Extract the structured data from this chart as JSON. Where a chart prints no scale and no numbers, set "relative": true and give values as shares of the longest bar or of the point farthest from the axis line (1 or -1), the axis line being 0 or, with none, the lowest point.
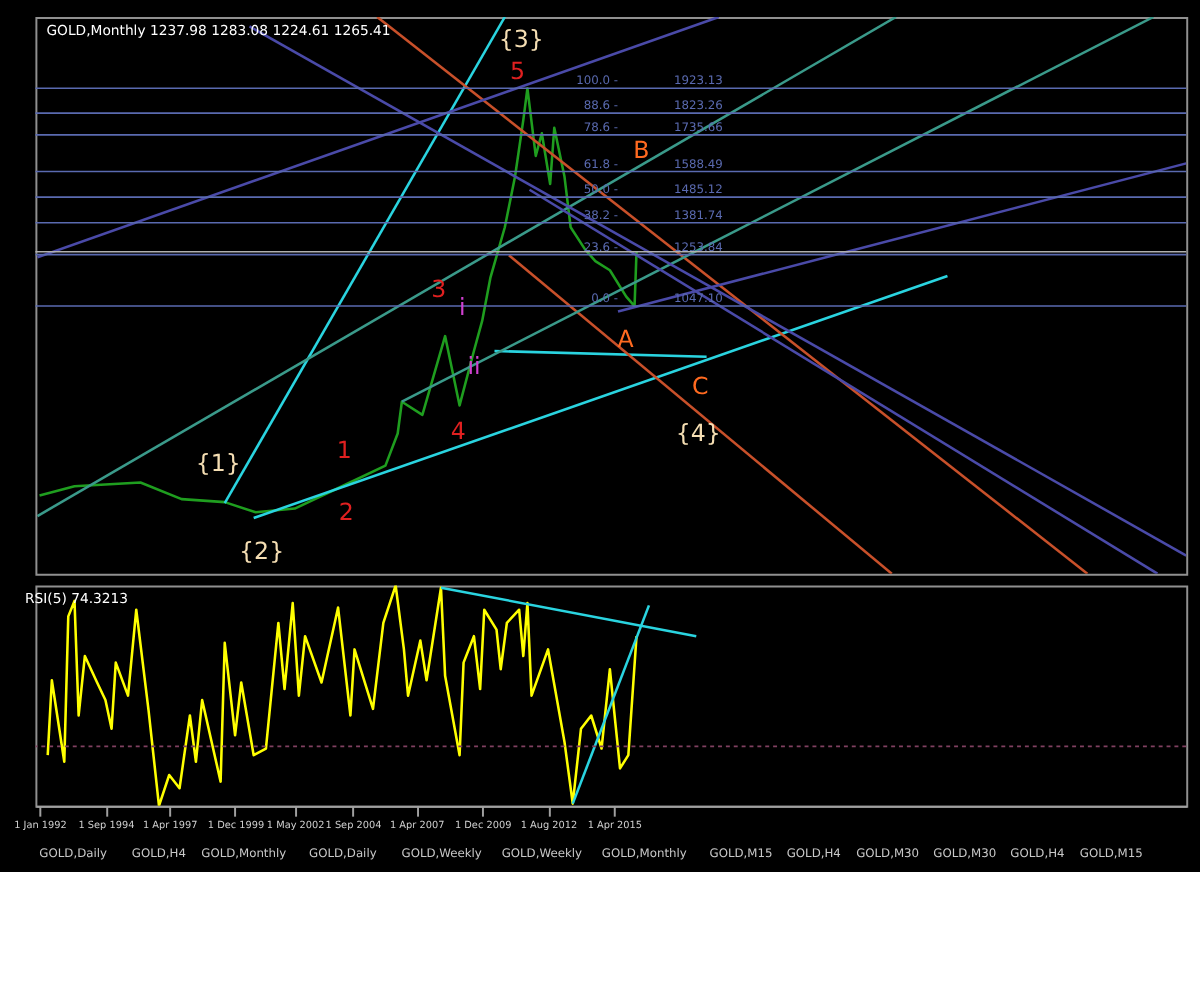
{
  "chart_data": [
    {
      "type": "line",
      "title": "GOLD,Monthly  1237.98 1283.08 1224.61 1265.41",
      "xlim": [
        "1991-11",
        "2038-06"
      ],
      "ylim": [
        -30,
        2210
      ],
      "tick_labels": false,
      "series": [
        {
          "color": "#1f9e1f",
          "x": [
            "1992-01",
            "1993-06",
            "1996-02",
            "1997-10",
            "1999-07",
            "2000-10",
            "2002-05",
            "2004-06",
            "2006-01",
            "2006-07",
            "2006-09",
            "2007-07",
            "2008-06",
            "2009-01",
            "2009-08",
            "2009-12",
            "2010-04",
            "2010-11",
            "2011-04",
            "2011-08",
            "2011-10",
            "2012-02",
            "2012-05",
            "2012-09",
            "2012-11",
            "2013-04",
            "2013-07",
            "2014-02",
            "2014-07",
            "2015-02",
            "2015-10",
            "2016-02",
            "2016-03"
          ],
          "values": [
            285,
            322,
            337,
            270,
            258,
            217,
            232,
            330,
            405,
            534,
            662,
            609,
            926,
            647,
            866,
            987,
            1160,
            1364,
            1568,
            1795,
            1923,
            1651,
            1742,
            1538,
            1764,
            1568,
            1364,
            1274,
            1228,
            1191,
            1085,
            1047,
            1265
          ]
        },
        {
          "type": "line",
          "color": "#2ad4e0",
          "x": [
            "1999-07",
            "2010-11"
          ],
          "values": [
            254,
            2210
          ]
        },
        {
          "type": "line",
          "color": "#2ad4e0",
          "x": [
            "2000-09",
            "2028-10"
          ],
          "values": [
            194,
            1168
          ]
        },
        {
          "type": "line",
          "color": "#2ad4e0",
          "x": [
            "2019-01",
            "2010-06"
          ],
          "values": [
            843,
            866
          ]
        },
        {
          "type": "line",
          "color": "#c8502a",
          "x": [
            "2005-09",
            "2034-06"
          ],
          "values": [
            2210,
            -30
          ]
        },
        {
          "type": "line",
          "color": "#c8502a",
          "x": [
            "2011-01",
            "2026-07"
          ],
          "values": [
            1251,
            -30
          ]
        },
        {
          "type": "line",
          "color": "#3a9a8a",
          "x": [
            "1991-12",
            "2026-09"
          ],
          "values": [
            202,
            2210
          ]
        },
        {
          "type": "line",
          "color": "#3a9a8a",
          "x": [
            "2006-09",
            "2037-02"
          ],
          "values": [
            662,
            2210
          ]
        },
        {
          "type": "line",
          "color": "#4a4aa8",
          "x": [
            "1991-12",
            "2019-07"
          ],
          "values": [
            1243,
            2210
          ]
        },
        {
          "type": "line",
          "color": "#4a4aa8",
          "x": [
            "2015-06",
            "2038-06"
          ],
          "values": [
            1025,
            1621
          ]
        },
        {
          "type": "line",
          "color": "#4a4aa8",
          "x": [
            "2000-07",
            "2038-06"
          ],
          "values": [
            2172,
            43
          ]
        },
        {
          "type": "line",
          "color": "#4a4aa8",
          "x": [
            "2011-11",
            "2037-04"
          ],
          "values": [
            1515,
            -30
          ]
        }
      ],
      "ref_lines": [
        {
          "axis": "y",
          "value": 1923.13,
          "label": "1923.13",
          "color": "#5a6ab0"
        },
        {
          "axis": "y",
          "value": 1823.26,
          "label": "1823.26",
          "color": "#5a6ab0"
        },
        {
          "axis": "y",
          "value": 1735.66,
          "label": "1735.66",
          "color": "#5a6ab0"
        },
        {
          "axis": "y",
          "value": 1588.49,
          "label": "1588.49",
          "color": "#5a6ab0"
        },
        {
          "axis": "y",
          "value": 1485.12,
          "label": "1485.12",
          "color": "#5a6ab0"
        },
        {
          "axis": "y",
          "value": 1381.74,
          "label": "1381.74",
          "color": "#5a6ab0"
        },
        {
          "axis": "y",
          "value": 1253.84,
          "label": "1253.84",
          "color": "#5a6ab0"
        },
        {
          "axis": "y",
          "value": 1047.1,
          "label": "1047.10",
          "color": "#5a6ab0"
        },
        {
          "axis": "y",
          "value": 1265.41,
          "color": "#b0b0b0"
        }
      ],
      "annotations": [
        {
          "text": "100.0 -",
          "x": "2015-06",
          "y": 1923.13
        },
        {
          "text": "88.6 -",
          "x": "2015-06",
          "y": 1823.26
        },
        {
          "text": "78.6 -",
          "x": "2015-06",
          "y": 1735.66
        },
        {
          "text": "61.8 -",
          "x": "2015-06",
          "y": 1588.49
        },
        {
          "text": "50.0 -",
          "x": "2015-06",
          "y": 1485.12
        },
        {
          "text": "38.2 -",
          "x": "2015-06",
          "y": 1381.74
        },
        {
          "text": "23.6 -",
          "x": "2015-06",
          "y": 1253.84
        },
        {
          "text": "0.0 -",
          "x": "2015-06",
          "y": 1047.1
        },
        "{1}",
        "{2}",
        "{3}",
        "{4}",
        "1",
        "2",
        "3",
        "4",
        "5",
        "i",
        "ii",
        "A",
        "B",
        "C"
      ]
    },
    {
      "type": "line",
      "title": "RSI(5) 74.3213",
      "relative": true,
      "xlim": [
        "1991-11",
        "2038-06"
      ],
      "tick_labels": "x",
      "xticks": [
        {
          "value": "1992-01-01",
          "label": "1 Jan 1992"
        },
        {
          "value": "1994-09-01",
          "label": "1 Sep 1994"
        },
        {
          "value": "1997-04-01",
          "label": "1 Apr 1997"
        },
        {
          "value": "1999-12-01",
          "label": "1 Dec 1999"
        },
        {
          "value": "2002-05-01",
          "label": "1 May 2002"
        },
        {
          "value": "2004-09-01",
          "label": "1 Sep 2004"
        },
        {
          "value": "2007-04-01",
          "label": "1 Apr 2007"
        },
        {
          "value": "2009-12-01",
          "label": "1 Dec 2009"
        },
        {
          "value": "2012-08-01",
          "label": "1 Aug 2012"
        },
        {
          "value": "2015-04-01",
          "label": "1 Apr 2015"
        }
      ],
      "series": [
        {
          "color": "#ffff00",
          "x": [
            "1992-05",
            "1992-07",
            "1993-01",
            "1993-03",
            "1993-06",
            "1993-08",
            "1993-11",
            "1994-05",
            "1994-09",
            "1994-12",
            "1995-02",
            "1995-08",
            "1995-12",
            "1996-06",
            "1996-11",
            "1997-04",
            "1997-09",
            "1998-02",
            "1998-05",
            "1998-08",
            "1999-05",
            "1999-07",
            "1999-12",
            "2000-03",
            "2000-09",
            "2001-03",
            "2001-09",
            "2001-12",
            "2002-04",
            "2002-07",
            "2002-10",
            "2003-06",
            "2004-02",
            "2004-08",
            "2004-10",
            "2005-07",
            "2005-12",
            "2006-06",
            "2006-10",
            "2006-12",
            "2007-06",
            "2007-09",
            "2008-04",
            "2008-06",
            "2009-01",
            "2009-03",
            "2009-08",
            "2009-11",
            "2010-01",
            "2010-07",
            "2010-09",
            "2010-12",
            "2011-06",
            "2011-08",
            "2011-10",
            "2011-12",
            "2012-08",
            "2013-04",
            "2013-08",
            "2013-12",
            "2014-05",
            "2014-10",
            "2015-02",
            "2015-07",
            "2015-11",
            "2016-03"
          ],
          "values": [
            0.23,
            0.57,
            0.2,
            0.86,
            0.93,
            0.41,
            0.68,
            0.56,
            0.48,
            0.35,
            0.65,
            0.5,
            0.89,
            0.43,
            0.0,
            0.14,
            0.08,
            0.41,
            0.2,
            0.48,
            0.11,
            0.74,
            0.32,
            0.56,
            0.23,
            0.26,
            0.83,
            0.53,
            0.92,
            0.5,
            0.77,
            0.56,
            0.9,
            0.41,
            0.71,
            0.44,
            0.83,
            1.0,
            0.71,
            0.5,
            0.75,
            0.57,
            0.99,
            0.59,
            0.23,
            0.65,
            0.77,
            0.53,
            0.89,
            0.8,
            0.62,
            0.83,
            0.89,
            0.68,
            0.92,
            0.5,
            0.71,
            0.29,
            0.01,
            0.35,
            0.41,
            0.26,
            0.62,
            0.17,
            0.23,
            0.77
          ]
        },
        {
          "type": "line",
          "color": "#2ad4e0",
          "x": [
            "2008-04",
            "2018-08"
          ],
          "values": [
            0.99,
            0.77
          ]
        },
        {
          "type": "line",
          "color": "#2ad4e0",
          "x": [
            "2013-08",
            "2016-09"
          ],
          "values": [
            0.01,
            0.91
          ]
        }
      ],
      "ref_lines": [
        {
          "axis": "y",
          "value": 0.27,
          "color": "#804060",
          "line_style": "dotted"
        }
      ],
      "annotations": [
        "GOLD,Daily",
        "GOLD,H4",
        "GOLD,Monthly",
        "GOLD,Daily",
        "GOLD,Weekly",
        "GOLD,Weekly",
        "GOLD,Monthly",
        "GOLD,M15",
        "GOLD,H4",
        "GOLD,M30",
        "GOLD,M30",
        "GOLD,H4",
        "GOLD,M15"
      ]
    }
  ]
}
